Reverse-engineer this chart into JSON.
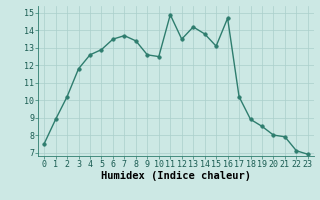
{
  "x": [
    0,
    1,
    2,
    3,
    4,
    5,
    6,
    7,
    8,
    9,
    10,
    11,
    12,
    13,
    14,
    15,
    16,
    17,
    18,
    19,
    20,
    21,
    22,
    23
  ],
  "y": [
    7.5,
    8.9,
    10.2,
    11.8,
    12.6,
    12.9,
    13.5,
    13.7,
    13.4,
    12.6,
    12.5,
    14.9,
    13.5,
    14.2,
    13.8,
    13.1,
    14.7,
    10.2,
    8.9,
    8.5,
    8.0,
    7.9,
    7.1,
    6.9
  ],
  "line_color": "#2e7d6e",
  "marker": "o",
  "markersize": 2.5,
  "linewidth": 1.0,
  "bg_color": "#cce8e4",
  "grid_color": "#aacfcb",
  "xlabel": "Humidex (Indice chaleur)",
  "xlim": [
    -0.5,
    23.5
  ],
  "ylim": [
    6.8,
    15.4
  ],
  "yticks": [
    7,
    8,
    9,
    10,
    11,
    12,
    13,
    14,
    15
  ],
  "xticks": [
    0,
    1,
    2,
    3,
    4,
    5,
    6,
    7,
    8,
    9,
    10,
    11,
    12,
    13,
    14,
    15,
    16,
    17,
    18,
    19,
    20,
    21,
    22,
    23
  ],
  "tick_fontsize": 6,
  "xlabel_fontsize": 7.5,
  "font_family": "monospace"
}
